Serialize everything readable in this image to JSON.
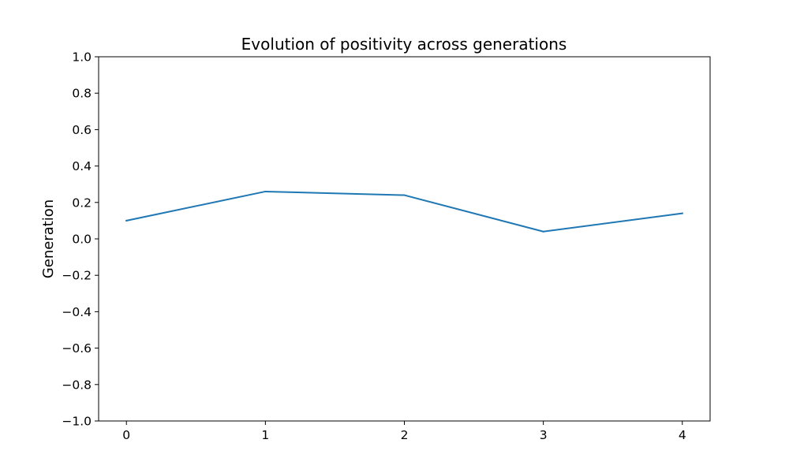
{
  "chart_data": {
    "type": "line",
    "title": "Evolution of positivity across generations",
    "xlabel": "",
    "ylabel": "Generation",
    "x": [
      0,
      1,
      2,
      3,
      4
    ],
    "series": [
      {
        "values": [
          0.1,
          0.26,
          0.24,
          0.04,
          0.14
        ],
        "color": "#1f77b4"
      }
    ],
    "xlim": [
      -0.2,
      4.2
    ],
    "ylim": [
      -1.0,
      1.0
    ],
    "xticks": [
      0,
      1,
      2,
      3,
      4
    ],
    "xtick_labels": [
      "0",
      "1",
      "2",
      "3",
      "4"
    ],
    "yticks": [
      -1.0,
      -0.8,
      -0.6,
      -0.4,
      -0.2,
      0.0,
      0.2,
      0.4,
      0.6,
      0.8,
      1.0
    ],
    "ytick_labels": [
      "−1.0",
      "−0.8",
      "−0.6",
      "−0.4",
      "−0.2",
      "0.0",
      "0.2",
      "0.4",
      "0.6",
      "0.8",
      "1.0"
    ],
    "grid": false,
    "legend": "none"
  }
}
